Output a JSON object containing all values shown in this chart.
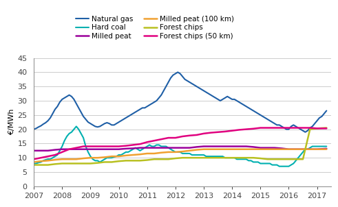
{
  "title": "",
  "ylabel": "€/MWh",
  "ylim": [
    0,
    45
  ],
  "yticks": [
    0,
    5,
    10,
    15,
    20,
    25,
    30,
    35,
    40,
    45
  ],
  "xlim": [
    2007.0,
    2017.5
  ],
  "xticks": [
    2007,
    2008,
    2009,
    2010,
    2011,
    2012,
    2013,
    2014,
    2015,
    2016,
    2017
  ],
  "series": {
    "Natural gas": {
      "color": "#1f5fa6",
      "linewidth": 1.5,
      "data_x": [
        2007.0,
        2007.083,
        2007.167,
        2007.25,
        2007.333,
        2007.417,
        2007.5,
        2007.583,
        2007.667,
        2007.75,
        2007.833,
        2007.917,
        2008.0,
        2008.083,
        2008.167,
        2008.25,
        2008.333,
        2008.417,
        2008.5,
        2008.583,
        2008.667,
        2008.75,
        2008.833,
        2008.917,
        2009.0,
        2009.083,
        2009.167,
        2009.25,
        2009.333,
        2009.417,
        2009.5,
        2009.583,
        2009.667,
        2009.75,
        2009.833,
        2009.917,
        2010.0,
        2010.083,
        2010.167,
        2010.25,
        2010.333,
        2010.417,
        2010.5,
        2010.583,
        2010.667,
        2010.75,
        2010.833,
        2010.917,
        2011.0,
        2011.083,
        2011.167,
        2011.25,
        2011.333,
        2011.417,
        2011.5,
        2011.583,
        2011.667,
        2011.75,
        2011.833,
        2011.917,
        2012.0,
        2012.083,
        2012.167,
        2012.25,
        2012.333,
        2012.417,
        2012.5,
        2012.583,
        2012.667,
        2012.75,
        2012.833,
        2012.917,
        2013.0,
        2013.083,
        2013.167,
        2013.25,
        2013.333,
        2013.417,
        2013.5,
        2013.583,
        2013.667,
        2013.75,
        2013.833,
        2013.917,
        2014.0,
        2014.083,
        2014.167,
        2014.25,
        2014.333,
        2014.417,
        2014.5,
        2014.583,
        2014.667,
        2014.75,
        2014.833,
        2014.917,
        2015.0,
        2015.083,
        2015.167,
        2015.25,
        2015.333,
        2015.417,
        2015.5,
        2015.583,
        2015.667,
        2015.75,
        2015.833,
        2015.917,
        2016.0,
        2016.083,
        2016.167,
        2016.25,
        2016.333,
        2016.417,
        2016.5,
        2016.583,
        2016.667,
        2016.75,
        2016.833,
        2016.917,
        2017.0,
        2017.083,
        2017.167,
        2017.25,
        2017.333
      ],
      "data_y": [
        20.0,
        20.3,
        20.8,
        21.2,
        21.8,
        22.3,
        23.0,
        24.0,
        25.5,
        27.0,
        28.0,
        29.5,
        30.5,
        31.0,
        31.5,
        32.0,
        31.5,
        30.5,
        29.0,
        27.5,
        26.0,
        24.5,
        23.5,
        22.5,
        22.0,
        21.5,
        21.0,
        20.8,
        21.0,
        21.5,
        22.0,
        22.3,
        22.0,
        21.5,
        21.5,
        22.0,
        22.5,
        23.0,
        23.5,
        24.0,
        24.5,
        25.0,
        25.5,
        26.0,
        26.5,
        27.0,
        27.5,
        27.5,
        28.0,
        28.5,
        29.0,
        29.5,
        30.0,
        31.0,
        32.0,
        33.5,
        35.0,
        36.5,
        38.0,
        39.0,
        39.5,
        40.0,
        39.5,
        38.5,
        37.5,
        37.0,
        36.5,
        36.0,
        35.5,
        35.0,
        34.5,
        34.0,
        33.5,
        33.0,
        32.5,
        32.0,
        31.5,
        31.0,
        30.5,
        30.0,
        30.5,
        31.0,
        31.5,
        31.0,
        30.5,
        30.5,
        30.0,
        29.5,
        29.0,
        28.5,
        28.0,
        27.5,
        27.0,
        26.5,
        26.0,
        25.5,
        25.0,
        24.5,
        24.0,
        23.5,
        23.0,
        22.5,
        22.0,
        21.5,
        21.5,
        21.0,
        20.5,
        20.0,
        20.0,
        21.0,
        21.5,
        21.0,
        20.5,
        20.0,
        19.5,
        19.0,
        19.5,
        20.5,
        21.0,
        22.0,
        23.0,
        24.0,
        24.5,
        25.5,
        26.5
      ]
    },
    "Hard coal": {
      "color": "#00b0b0",
      "linewidth": 1.5,
      "data_x": [
        2007.0,
        2007.083,
        2007.167,
        2007.25,
        2007.333,
        2007.417,
        2007.5,
        2007.583,
        2007.667,
        2007.75,
        2007.833,
        2007.917,
        2008.0,
        2008.083,
        2008.167,
        2008.25,
        2008.333,
        2008.417,
        2008.5,
        2008.583,
        2008.667,
        2008.75,
        2008.833,
        2008.917,
        2009.0,
        2009.083,
        2009.167,
        2009.25,
        2009.333,
        2009.417,
        2009.5,
        2009.583,
        2009.667,
        2009.75,
        2009.833,
        2009.917,
        2010.0,
        2010.083,
        2010.167,
        2010.25,
        2010.333,
        2010.417,
        2010.5,
        2010.583,
        2010.667,
        2010.75,
        2010.833,
        2010.917,
        2011.0,
        2011.083,
        2011.167,
        2011.25,
        2011.333,
        2011.417,
        2011.5,
        2011.583,
        2011.667,
        2011.75,
        2011.833,
        2011.917,
        2012.0,
        2012.083,
        2012.167,
        2012.25,
        2012.333,
        2012.417,
        2012.5,
        2012.583,
        2012.667,
        2012.75,
        2012.833,
        2012.917,
        2013.0,
        2013.083,
        2013.167,
        2013.25,
        2013.333,
        2013.417,
        2013.5,
        2013.583,
        2013.667,
        2013.75,
        2013.833,
        2013.917,
        2014.0,
        2014.083,
        2014.167,
        2014.25,
        2014.333,
        2014.417,
        2014.5,
        2014.583,
        2014.667,
        2014.75,
        2014.833,
        2014.917,
        2015.0,
        2015.083,
        2015.167,
        2015.25,
        2015.333,
        2015.417,
        2015.5,
        2015.583,
        2015.667,
        2015.75,
        2015.833,
        2015.917,
        2016.0,
        2016.083,
        2016.167,
        2016.25,
        2016.333,
        2016.417,
        2016.5,
        2016.583,
        2016.667,
        2016.75,
        2016.833,
        2016.917,
        2017.0,
        2017.083,
        2017.167,
        2017.25,
        2017.333
      ],
      "data_y": [
        8.0,
        8.0,
        8.3,
        8.5,
        9.0,
        9.3,
        9.5,
        9.5,
        10.0,
        10.5,
        11.0,
        12.5,
        14.0,
        16.0,
        17.5,
        18.5,
        19.0,
        20.0,
        21.0,
        20.0,
        18.5,
        17.0,
        14.0,
        12.0,
        10.5,
        9.5,
        9.0,
        9.0,
        8.5,
        9.0,
        9.5,
        10.0,
        10.0,
        10.0,
        10.3,
        10.5,
        11.0,
        11.0,
        11.5,
        12.0,
        12.0,
        12.5,
        13.0,
        13.5,
        13.0,
        12.5,
        13.0,
        13.5,
        14.0,
        14.5,
        14.0,
        14.0,
        14.5,
        14.5,
        14.0,
        14.0,
        14.0,
        13.5,
        13.0,
        12.5,
        12.0,
        12.0,
        12.0,
        11.5,
        11.5,
        11.5,
        11.5,
        11.0,
        11.0,
        11.0,
        11.0,
        11.0,
        11.0,
        10.5,
        10.5,
        10.5,
        10.5,
        10.5,
        10.5,
        10.5,
        10.5,
        10.0,
        10.0,
        10.0,
        10.0,
        10.0,
        9.5,
        9.5,
        9.5,
        9.5,
        9.5,
        9.0,
        9.0,
        8.5,
        8.5,
        8.5,
        8.0,
        8.0,
        8.0,
        8.0,
        8.0,
        7.5,
        7.5,
        7.5,
        7.0,
        7.0,
        7.0,
        7.0,
        7.0,
        7.5,
        8.0,
        9.0,
        10.0,
        11.0,
        12.0,
        13.0,
        13.0,
        13.5,
        14.0,
        14.0,
        14.0,
        14.0,
        14.0,
        14.0,
        14.0
      ]
    },
    "Milled peat": {
      "color": "#9b009b",
      "linewidth": 1.8,
      "data_x": [
        2007.0,
        2007.25,
        2007.5,
        2007.75,
        2008.0,
        2008.25,
        2008.5,
        2008.75,
        2009.0,
        2009.25,
        2009.5,
        2009.75,
        2010.0,
        2010.25,
        2010.5,
        2010.75,
        2011.0,
        2011.25,
        2011.5,
        2011.75,
        2012.0,
        2012.25,
        2012.5,
        2012.75,
        2013.0,
        2013.25,
        2013.5,
        2013.75,
        2014.0,
        2014.25,
        2014.5,
        2014.75,
        2015.0,
        2015.25,
        2015.5,
        2015.75,
        2016.0,
        2016.25,
        2016.5,
        2016.75,
        2017.0,
        2017.333
      ],
      "data_y": [
        12.5,
        12.5,
        12.5,
        12.8,
        13.0,
        13.0,
        13.0,
        13.0,
        13.0,
        13.0,
        13.0,
        13.0,
        13.0,
        13.2,
        13.3,
        13.5,
        13.5,
        13.5,
        13.5,
        13.5,
        13.5,
        13.5,
        13.5,
        13.8,
        14.0,
        14.0,
        14.0,
        14.0,
        14.0,
        14.0,
        14.0,
        13.8,
        13.5,
        13.5,
        13.5,
        13.3,
        13.0,
        13.0,
        13.0,
        13.0,
        13.0,
        13.2
      ]
    },
    "Milled peat (100 km)": {
      "color": "#f0a030",
      "linewidth": 1.8,
      "data_x": [
        2007.0,
        2007.25,
        2007.5,
        2007.75,
        2008.0,
        2008.25,
        2008.5,
        2008.75,
        2009.0,
        2009.25,
        2009.5,
        2009.75,
        2010.0,
        2010.25,
        2010.5,
        2010.75,
        2011.0,
        2011.25,
        2011.5,
        2011.75,
        2012.0,
        2012.25,
        2012.5,
        2012.75,
        2013.0,
        2013.25,
        2013.5,
        2013.75,
        2014.0,
        2014.25,
        2014.5,
        2014.75,
        2015.0,
        2015.25,
        2015.5,
        2015.75,
        2016.0,
        2016.25,
        2016.5,
        2016.75,
        2017.0,
        2017.333
      ],
      "data_y": [
        8.5,
        8.8,
        9.0,
        9.3,
        9.5,
        9.5,
        9.5,
        9.8,
        10.0,
        10.0,
        10.2,
        10.5,
        10.5,
        10.8,
        11.0,
        11.2,
        11.5,
        11.5,
        11.8,
        12.0,
        12.0,
        12.2,
        12.5,
        12.8,
        13.0,
        13.0,
        13.0,
        13.0,
        13.0,
        13.0,
        13.0,
        13.0,
        13.0,
        13.0,
        13.0,
        13.0,
        13.0,
        13.0,
        13.0,
        13.0,
        13.0,
        13.0
      ]
    },
    "Forest chips": {
      "color": "#b8c020",
      "linewidth": 1.8,
      "data_x": [
        2007.0,
        2007.25,
        2007.5,
        2007.75,
        2008.0,
        2008.25,
        2008.5,
        2008.75,
        2009.0,
        2009.25,
        2009.5,
        2009.75,
        2010.0,
        2010.25,
        2010.5,
        2010.75,
        2011.0,
        2011.25,
        2011.5,
        2011.75,
        2012.0,
        2012.25,
        2012.5,
        2012.75,
        2013.0,
        2013.25,
        2013.5,
        2013.75,
        2014.0,
        2014.25,
        2014.5,
        2014.75,
        2015.0,
        2015.25,
        2015.5,
        2015.75,
        2016.0,
        2016.25,
        2016.5,
        2016.75,
        2017.0,
        2017.333
      ],
      "data_y": [
        7.5,
        7.5,
        7.5,
        7.8,
        8.0,
        8.0,
        8.0,
        8.0,
        8.0,
        8.2,
        8.5,
        8.5,
        8.8,
        9.0,
        9.0,
        9.0,
        9.2,
        9.5,
        9.5,
        9.5,
        9.8,
        10.0,
        10.0,
        10.0,
        10.0,
        10.0,
        10.0,
        10.0,
        10.0,
        10.0,
        10.0,
        10.0,
        9.8,
        9.5,
        9.5,
        9.5,
        9.5,
        9.5,
        9.5,
        20.0,
        20.3,
        20.5
      ]
    },
    "Forest chips (50 km)": {
      "color": "#e0007f",
      "linewidth": 1.8,
      "data_x": [
        2007.0,
        2007.25,
        2007.5,
        2007.75,
        2008.0,
        2008.25,
        2008.5,
        2008.75,
        2009.0,
        2009.25,
        2009.5,
        2009.75,
        2010.0,
        2010.25,
        2010.5,
        2010.75,
        2011.0,
        2011.25,
        2011.5,
        2011.75,
        2012.0,
        2012.25,
        2012.5,
        2012.75,
        2013.0,
        2013.25,
        2013.5,
        2013.75,
        2014.0,
        2014.25,
        2014.5,
        2014.75,
        2015.0,
        2015.25,
        2015.5,
        2015.75,
        2016.0,
        2016.25,
        2016.5,
        2016.75,
        2017.0,
        2017.333
      ],
      "data_y": [
        9.5,
        10.0,
        10.5,
        11.0,
        12.0,
        13.0,
        13.5,
        14.0,
        14.0,
        14.0,
        14.0,
        14.0,
        14.0,
        14.2,
        14.5,
        14.8,
        15.5,
        16.0,
        16.5,
        17.0,
        17.0,
        17.5,
        17.8,
        18.0,
        18.5,
        18.8,
        19.0,
        19.2,
        19.5,
        19.8,
        20.0,
        20.2,
        20.5,
        20.5,
        20.5,
        20.5,
        20.5,
        20.5,
        20.5,
        20.5,
        20.3,
        20.3
      ]
    }
  },
  "legend_order": [
    "Natural gas",
    "Hard coal",
    "Milled peat",
    "Milled peat (100 km)",
    "Forest chips",
    "Forest chips (50 km)"
  ],
  "grid_color": "#cccccc",
  "background_color": "#ffffff"
}
